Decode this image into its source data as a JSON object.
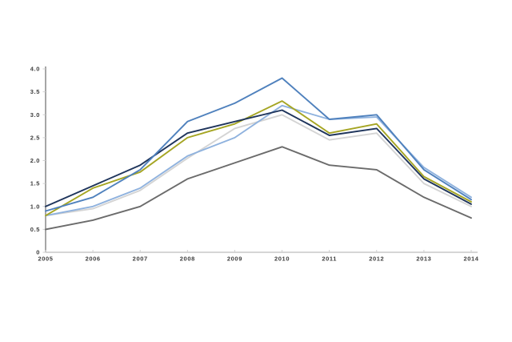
{
  "chart_data": {
    "type": "line",
    "title": "",
    "xlabel": "",
    "ylabel": "",
    "categories": [
      "2005",
      "2006",
      "2007",
      "2008",
      "2009",
      "2010",
      "2011",
      "2012",
      "2013",
      "2014"
    ],
    "series": [
      {
        "name": "dark-gray",
        "color": "#6b6b6b",
        "values": [
          0.5,
          0.7,
          1.0,
          1.6,
          1.95,
          2.3,
          1.9,
          1.8,
          1.2,
          0.75
        ]
      },
      {
        "name": "light-gray",
        "color": "#d4d4d4",
        "values": [
          0.8,
          0.95,
          1.35,
          2.05,
          2.7,
          3.0,
          2.45,
          2.6,
          1.5,
          1.0
        ]
      },
      {
        "name": "light-blue",
        "color": "#8fb2de",
        "values": [
          0.8,
          1.0,
          1.4,
          2.1,
          2.5,
          3.2,
          2.9,
          2.95,
          1.85,
          1.2
        ]
      },
      {
        "name": "olive",
        "color": "#a5a523",
        "values": [
          0.8,
          1.4,
          1.75,
          2.5,
          2.8,
          3.3,
          2.6,
          2.8,
          1.65,
          1.1
        ]
      },
      {
        "name": "dark-navy",
        "color": "#1f355c",
        "values": [
          1.0,
          1.45,
          1.9,
          2.6,
          2.85,
          3.1,
          2.55,
          2.7,
          1.6,
          1.05
        ]
      },
      {
        "name": "medium-blue",
        "color": "#4f81bd",
        "values": [
          0.9,
          1.2,
          1.8,
          2.85,
          3.25,
          3.8,
          2.9,
          3.0,
          1.8,
          1.15
        ]
      }
    ],
    "y_axis": {
      "min": 0,
      "max": 4.0,
      "tick_values": [
        0,
        0.5,
        1.0,
        1.5,
        2.0,
        2.5,
        3.0,
        3.5,
        4.0
      ],
      "tick_labels": [
        "0",
        "0.5",
        "1.0",
        "1.5",
        "2.0",
        "2.5",
        "3.0",
        "3.5",
        "4.0"
      ]
    },
    "grid": false,
    "legend": "none",
    "axis_colors": {
      "y_axis_line": "#8f8f8f",
      "x_axis_line": "#c9c9c9",
      "tick_mark": "#cfcfcf",
      "label_text": "#3d3d3d"
    }
  }
}
